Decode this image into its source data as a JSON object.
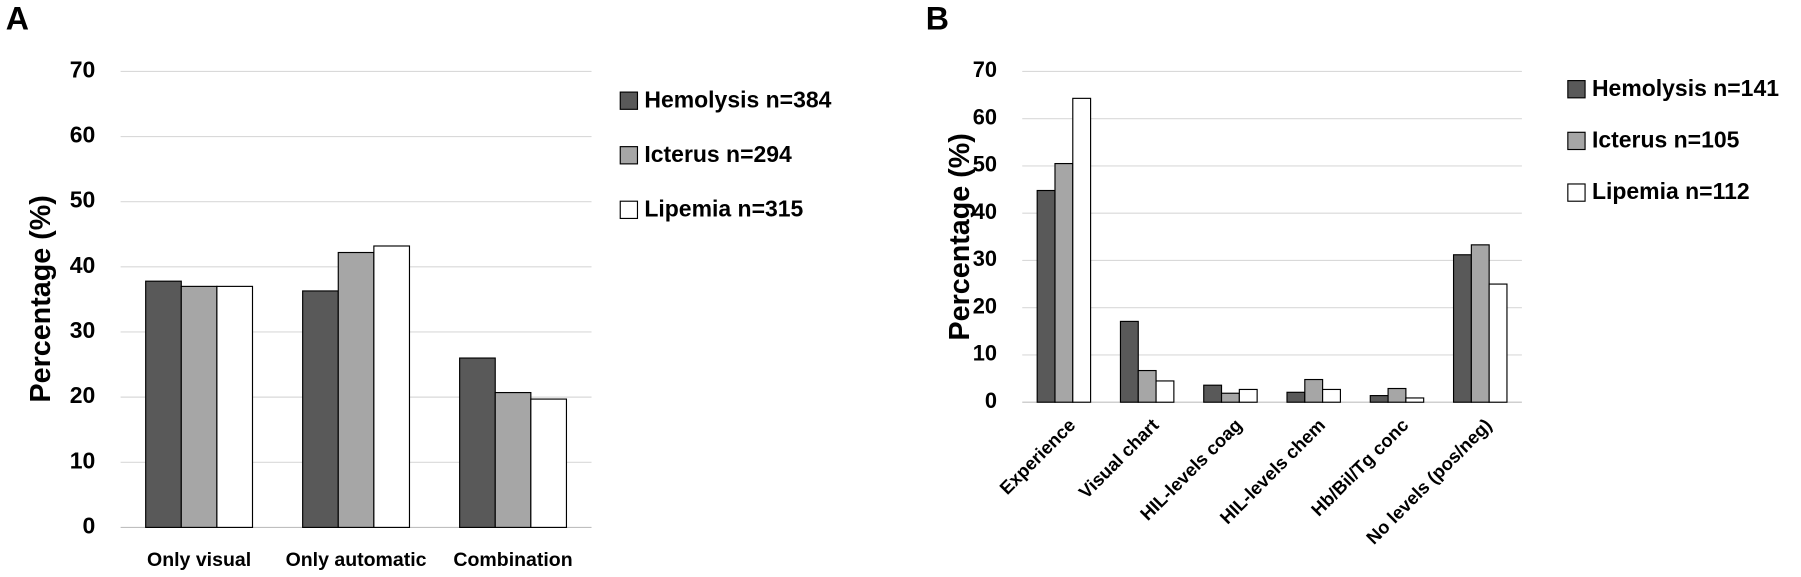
{
  "chart_data": [
    {
      "type": "bar",
      "label": "A",
      "ylabel": "Percentage (%)",
      "categories": [
        "Only visual",
        "Only automatic",
        "Combination"
      ],
      "series": [
        {
          "name": "Hemolysis n=384",
          "color": "#595959",
          "values": [
            37.8,
            36.3,
            26.0
          ]
        },
        {
          "name": "Icterus n=294",
          "color": "#a6a6a6",
          "values": [
            37.0,
            42.2,
            20.7
          ]
        },
        {
          "name": "Lipemia n=315",
          "color": "#ffffff",
          "values": [
            37.0,
            43.2,
            19.7
          ]
        }
      ],
      "ylim": [
        0,
        70
      ],
      "yticks": [
        0,
        10,
        20,
        30,
        40,
        50,
        60,
        70
      ],
      "grid": true,
      "legend": "right"
    },
    {
      "type": "bar",
      "label": "B",
      "ylabel": "Percentage (%)",
      "categories": [
        "Experience",
        "Visual chart",
        "HIL-levels coag",
        "HIL-levels chem",
        "Hb/Bil/Tg conc",
        "No levels (pos/neg)"
      ],
      "series": [
        {
          "name": "Hemolysis n=141",
          "color": "#595959",
          "values": [
            44.8,
            17.1,
            3.6,
            2.1,
            1.4,
            31.2
          ]
        },
        {
          "name": "Icterus n=105",
          "color": "#a6a6a6",
          "values": [
            50.5,
            6.7,
            1.9,
            4.8,
            2.9,
            33.3
          ]
        },
        {
          "name": "Lipemia n=112",
          "color": "#ffffff",
          "values": [
            64.3,
            4.5,
            2.7,
            2.7,
            0.9,
            25.0
          ]
        }
      ],
      "ylim": [
        0,
        70
      ],
      "yticks": [
        0,
        10,
        20,
        30,
        40,
        50,
        60,
        70
      ],
      "grid": true,
      "legend": "right"
    }
  ]
}
